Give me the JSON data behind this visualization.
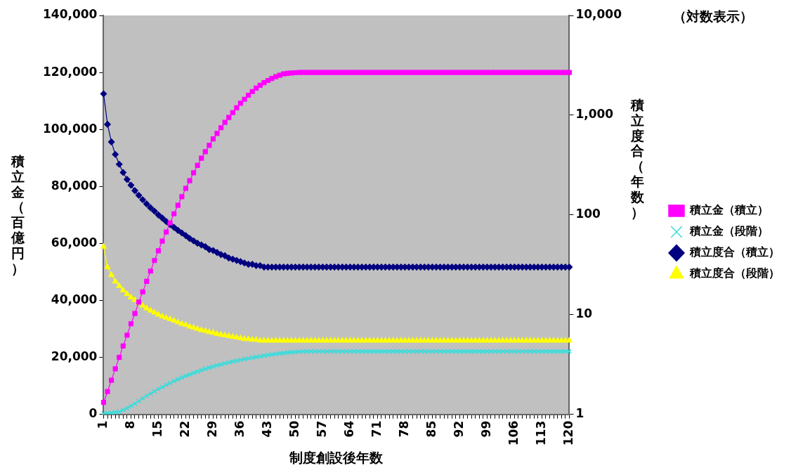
{
  "chart_data": {
    "type": "line",
    "xlabel": "制度創設後年数",
    "ylabel": "積立金（百億円）",
    "y2label": "積立度合（年数）",
    "annotations": [
      "（対数表示）"
    ],
    "categories": [
      "1",
      null,
      null,
      null,
      null,
      null,
      null,
      "8",
      null,
      null,
      null,
      null,
      null,
      null,
      "15",
      null,
      null,
      null,
      null,
      null,
      null,
      "22",
      null,
      null,
      null,
      null,
      null,
      null,
      "29",
      null,
      null,
      null,
      null,
      null,
      null,
      "36",
      null,
      null,
      null,
      null,
      null,
      null,
      "43",
      null,
      null,
      null,
      null,
      null,
      null,
      "50",
      null,
      null,
      null,
      null,
      null,
      null,
      "57",
      null,
      null,
      null,
      null,
      null,
      null,
      "64",
      null,
      null,
      null,
      null,
      null,
      null,
      "71",
      null,
      null,
      null,
      null,
      null,
      null,
      "78",
      null,
      null,
      null,
      null,
      null,
      null,
      "85",
      null,
      null,
      null,
      null,
      null,
      null,
      "92",
      null,
      null,
      null,
      null,
      null,
      null,
      "99",
      null,
      null,
      null,
      null,
      null,
      null,
      "106",
      null,
      null,
      null,
      null,
      null,
      null,
      "113",
      null,
      null,
      null,
      null,
      null,
      null,
      "120"
    ],
    "series": [
      {
        "name": "積立金（積立）",
        "color": "#ff00ff",
        "marker": "square",
        "values": [
          4200,
          8000,
          12000,
          16000,
          20000,
          24000,
          27800,
          31800,
          35400,
          39400,
          43000,
          46700,
          50300,
          54000,
          57400,
          60800,
          64000,
          67200,
          70400,
          73400,
          76400,
          79300,
          82000,
          84800,
          87400,
          89900,
          92200,
          94400,
          96700,
          98600,
          100600,
          102500,
          104200,
          105900,
          107600,
          109200,
          110600,
          112000,
          113300,
          114500,
          115500,
          116400,
          117200,
          117900,
          118500,
          119000,
          119500,
          119700,
          119800,
          119900,
          120000,
          120000,
          120000,
          120000,
          120000,
          120000,
          120000,
          120000,
          120000,
          120000,
          120000,
          120000,
          120000,
          120000,
          120000,
          120000,
          120000,
          120000,
          120000,
          120000,
          120000,
          120000,
          120000,
          120000,
          120000,
          120000,
          120000,
          120000,
          120000,
          120000,
          120000,
          120000,
          120000,
          120000,
          120000,
          120000,
          120000,
          120000,
          120000,
          120000,
          120000,
          120000,
          120000,
          120000,
          120000,
          120000,
          120000,
          120000,
          120000,
          120000,
          120000,
          120000,
          120000,
          120000,
          120000,
          120000,
          120000,
          120000,
          120000,
          120000,
          120000,
          120000,
          120000,
          120000,
          120000,
          120000,
          120000,
          120000,
          120000,
          120000
        ]
      },
      {
        "name": "積立金（段階）",
        "color": "#33dddd",
        "marker": "cross",
        "values": [
          300,
          400,
          500,
          700,
          900,
          1500,
          2200,
          3000,
          3800,
          4700,
          5600,
          6500,
          7300,
          8100,
          8900,
          9600,
          10300,
          11000,
          11700,
          12300,
          12900,
          13500,
          14000,
          14500,
          15000,
          15500,
          16000,
          16400,
          16800,
          17200,
          17500,
          17900,
          18200,
          18500,
          18800,
          19100,
          19400,
          19600,
          19900,
          20100,
          20300,
          20600,
          20800,
          21000,
          21200,
          21400,
          21500,
          21700,
          21800,
          21900,
          22000,
          22100,
          22100,
          22100,
          22100,
          22100,
          22100,
          22100,
          22100,
          22100,
          22100,
          22100,
          22100,
          22100,
          22100,
          22100,
          22100,
          22100,
          22100,
          22100,
          22100,
          22100,
          22100,
          22100,
          22100,
          22100,
          22100,
          22100,
          22100,
          22100,
          22100,
          22100,
          22100,
          22100,
          22100,
          22100,
          22100,
          22100,
          22100,
          22100,
          22100,
          22100,
          22100,
          22100,
          22100,
          22100,
          22100,
          22100,
          22100,
          22100,
          22100,
          22100,
          22100,
          22100,
          22100,
          22100,
          22100,
          22100,
          22100,
          22100,
          22100,
          22100,
          22100,
          22100,
          22100,
          22100,
          22100,
          22100,
          22100,
          22100
        ]
      },
      {
        "name": "積立度合（積立）",
        "color": "#000080",
        "marker": "diamond",
        "axis": "y2",
        "values": [
          1640,
          810,
          540,
          404,
          322,
          266,
          227,
          199,
          175,
          157,
          142,
          129,
          118,
          109,
          100,
          93,
          86,
          80,
          75,
          70,
          66,
          62,
          58,
          55,
          52,
          50,
          48,
          45,
          44,
          42,
          40,
          39,
          37,
          36,
          35,
          34,
          33,
          32,
          32,
          31,
          31,
          30,
          30,
          30,
          30,
          30,
          30,
          30,
          30,
          30,
          30,
          30,
          30,
          30,
          30,
          30,
          30,
          30,
          30,
          30,
          30,
          30,
          30,
          30,
          30,
          30,
          30,
          30,
          30,
          30,
          30,
          30,
          30,
          30,
          30,
          30,
          30,
          30,
          30,
          30,
          30,
          30,
          30,
          30,
          30,
          30,
          30,
          30,
          30,
          30,
          30,
          30,
          30,
          30,
          30,
          30,
          30,
          30,
          30,
          30,
          30,
          30,
          30,
          30,
          30,
          30,
          30,
          30,
          30,
          30,
          30,
          30,
          30,
          30,
          30,
          30,
          30,
          30,
          30,
          30
        ]
      },
      {
        "name": "積立度合（段階）",
        "color": "#ffff00",
        "marker": "triangle",
        "axis": "y2",
        "values": [
          48,
          30,
          25,
          21.5,
          19.4,
          17.5,
          16.1,
          14.9,
          14,
          13.1,
          12.3,
          11.6,
          11,
          10.5,
          10,
          9.6,
          9.3,
          9,
          8.7,
          8.4,
          8.1,
          7.9,
          7.6,
          7.4,
          7.2,
          7,
          6.9,
          6.7,
          6.6,
          6.4,
          6.3,
          6.2,
          6.1,
          6,
          5.9,
          5.8,
          5.7,
          5.7,
          5.6,
          5.6,
          5.5,
          5.5,
          5.5,
          5.5,
          5.5,
          5.5,
          5.5,
          5.5,
          5.5,
          5.5,
          5.5,
          5.5,
          5.5,
          5.5,
          5.5,
          5.5,
          5.5,
          5.5,
          5.5,
          5.5,
          5.5,
          5.5,
          5.5,
          5.5,
          5.5,
          5.5,
          5.5,
          5.5,
          5.5,
          5.5,
          5.5,
          5.5,
          5.5,
          5.5,
          5.5,
          5.5,
          5.5,
          5.5,
          5.5,
          5.5,
          5.5,
          5.5,
          5.5,
          5.5,
          5.5,
          5.5,
          5.5,
          5.5,
          5.5,
          5.5,
          5.5,
          5.5,
          5.5,
          5.5,
          5.5,
          5.5,
          5.5,
          5.5,
          5.5,
          5.5,
          5.5,
          5.5,
          5.5,
          5.5,
          5.5,
          5.5,
          5.5,
          5.5,
          5.5,
          5.5,
          5.5,
          5.5,
          5.5,
          5.5,
          5.5,
          5.5,
          5.5,
          5.5,
          5.5,
          5.5
        ]
      }
    ],
    "ylim": [
      0,
      140000
    ],
    "yticks": [
      0,
      {
        "value": 20000,
        "label": "20,000"
      },
      {
        "value": 40000,
        "label": "40,000"
      },
      {
        "value": 60000,
        "label": "60,000"
      },
      {
        "value": 80000,
        "label": "80,000"
      },
      {
        "value": 100000,
        "label": "100,000"
      },
      {
        "value": 120000,
        "label": "120,000"
      },
      {
        "value": 140000,
        "label": "140,000"
      }
    ],
    "y2lim": [
      1,
      10000
    ],
    "y2ticks": [
      1,
      10,
      100,
      {
        "value": 1000,
        "label": "1,000"
      },
      {
        "value": 10000,
        "label": "10,000"
      }
    ],
    "log": "y2",
    "grid": false,
    "legend": "right",
    "line_style": "solid"
  }
}
